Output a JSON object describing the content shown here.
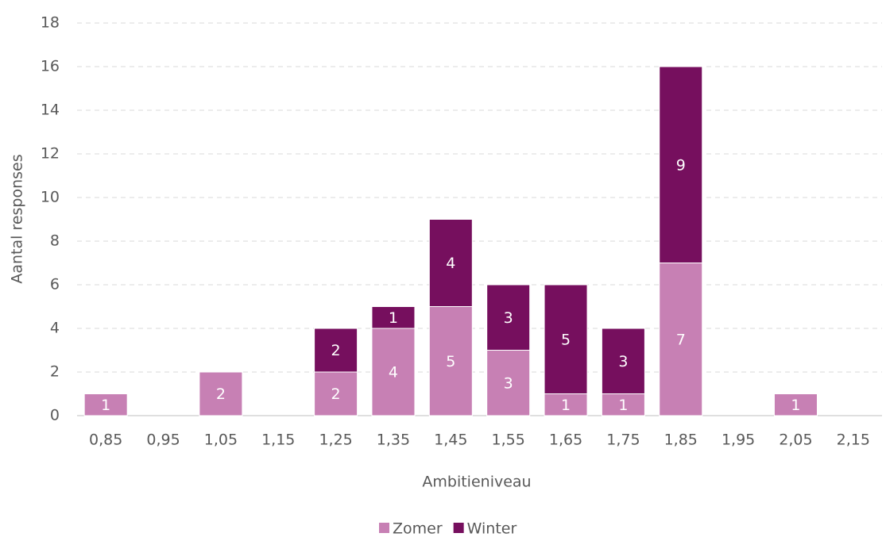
{
  "chart_data": {
    "type": "bar",
    "stacked": true,
    "x_label": "Ambitieniveau",
    "y_label": "Aantal responses",
    "categories": [
      "0,85",
      "0,95",
      "1,05",
      "1,15",
      "1,25",
      "1,35",
      "1,45",
      "1,55",
      "1,65",
      "1,75",
      "1,85",
      "1,95",
      "2,05",
      "2,15"
    ],
    "series": [
      {
        "name": "Zomer",
        "color": "#c780b4",
        "values": [
          1,
          null,
          2,
          null,
          2,
          4,
          5,
          3,
          1,
          1,
          7,
          null,
          1,
          null
        ]
      },
      {
        "name": "Winter",
        "color": "#760f5e",
        "values": [
          null,
          null,
          null,
          null,
          2,
          1,
          4,
          3,
          5,
          3,
          9,
          null,
          null,
          null
        ]
      }
    ],
    "ylim": [
      0,
      18
    ],
    "yticks": [
      0,
      2,
      4,
      6,
      8,
      10,
      12,
      14,
      16,
      18
    ],
    "grid": true,
    "legend": "bottom"
  }
}
